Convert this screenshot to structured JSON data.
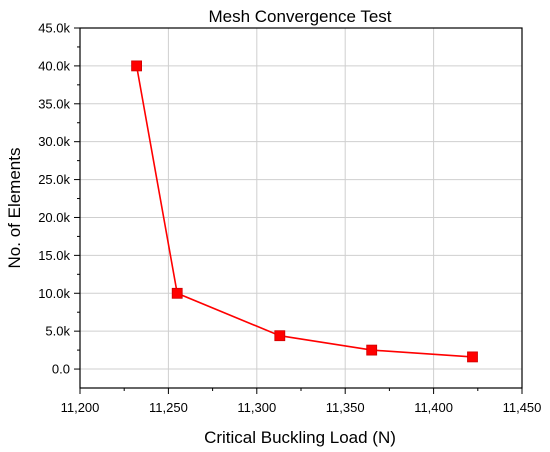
{
  "chart_data": {
    "type": "line",
    "title": "Mesh Convergence Test",
    "xlabel": "Critical Buckling Load (N)",
    "ylabel": "No. of Elements",
    "xlim": [
      11200,
      11450
    ],
    "ylim": [
      -2500,
      45000
    ],
    "grid": true,
    "x_ticks": [
      11200,
      11250,
      11300,
      11350,
      11400,
      11450
    ],
    "x_tick_labels": [
      "11,200",
      "11,250",
      "11,300",
      "11,350",
      "11,400",
      "11,450"
    ],
    "y_ticks": [
      0,
      5000,
      10000,
      15000,
      20000,
      25000,
      30000,
      35000,
      40000,
      45000
    ],
    "y_tick_labels": [
      "0.0",
      "5.0k",
      "10.0k",
      "15.0k",
      "20.0k",
      "25.0k",
      "30.0k",
      "35.0k",
      "40.0k",
      "45.0k"
    ],
    "series": [
      {
        "color": "#ff0000",
        "marker": "square",
        "x": [
          11232,
          11255,
          11313,
          11365,
          11422
        ],
        "y": [
          40000,
          10000,
          4400,
          2500,
          1600
        ]
      }
    ]
  }
}
